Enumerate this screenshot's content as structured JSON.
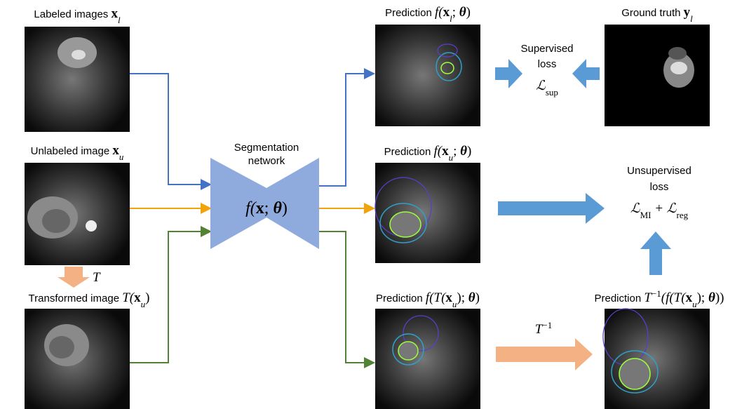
{
  "inputs": {
    "labeled": {
      "label": "Labeled images",
      "math": "x",
      "sub": "l"
    },
    "unlabeled": {
      "label": "Unlabeled image",
      "math": "x",
      "sub": "u"
    },
    "transform": {
      "symbol": "T"
    },
    "transformed": {
      "label": "Transformed image",
      "parts": [
        "T(",
        "x",
        "u",
        ")"
      ]
    }
  },
  "network": {
    "title_lines": [
      "Segmentation",
      "network"
    ],
    "formula": [
      "f(",
      "x",
      "; ",
      "θ",
      ")"
    ]
  },
  "predictions": [
    {
      "label": "Prediction",
      "formula": [
        "f(",
        "x",
        "l",
        "; ",
        "θ",
        ")"
      ]
    },
    {
      "label": "Prediction",
      "formula": [
        "f(",
        "x",
        "u",
        "; ",
        "θ",
        ")"
      ]
    },
    {
      "label": "Prediction",
      "formula": [
        "f(T(",
        "x",
        "u",
        "); ",
        "θ",
        ")"
      ]
    },
    {
      "label": "Prediction",
      "formula": [
        "T",
        "−1",
        "(f(T(",
        "x",
        "u",
        "); ",
        "θ",
        "))"
      ]
    }
  ],
  "ground_truth": {
    "label": "Ground truth",
    "math": "y",
    "sub": "l"
  },
  "supervised_loss": {
    "lines": [
      "Supervised",
      "loss"
    ],
    "symbol": "ℒ",
    "sub": "sup"
  },
  "unsupervised_loss": {
    "lines": [
      "Unsupervised",
      "loss"
    ],
    "parts": [
      "ℒ",
      "MI",
      " + ℒ",
      "reg"
    ]
  },
  "inverse": {
    "symbol": "T",
    "sup": "−1"
  }
}
